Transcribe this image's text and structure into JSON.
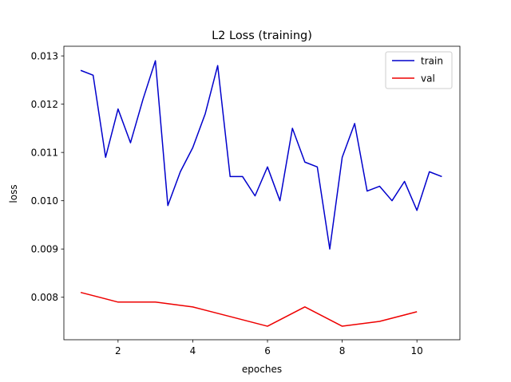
{
  "chart_data": {
    "type": "line",
    "title": "L2 Loss (training)",
    "xlabel": "epoches",
    "ylabel": "loss",
    "xlim": [
      0.55,
      11.15
    ],
    "ylim": [
      0.00712,
      0.0132
    ],
    "xticks": [
      2,
      4,
      6,
      8,
      10
    ],
    "xtick_labels": [
      "2",
      "4",
      "6",
      "8",
      "10"
    ],
    "yticks": [
      0.008,
      0.009,
      0.01,
      0.011,
      0.012,
      0.013
    ],
    "ytick_labels": [
      "0.008",
      "0.009",
      "0.010",
      "0.011",
      "0.012",
      "0.013"
    ],
    "grid": false,
    "legend_position": "top-right",
    "series": [
      {
        "name": "train",
        "color": "#0000cc",
        "x": [
          1.0,
          1.333,
          1.667,
          2.0,
          2.333,
          2.667,
          3.0,
          3.333,
          3.667,
          4.0,
          4.333,
          4.667,
          5.0,
          5.333,
          5.667,
          6.0,
          6.333,
          6.667,
          7.0,
          7.333,
          7.667,
          8.0,
          8.333,
          8.667,
          9.0,
          9.333,
          9.667,
          10.0,
          10.333,
          10.667
        ],
        "y": [
          0.0127,
          0.0126,
          0.0109,
          0.0119,
          0.0112,
          0.0121,
          0.0129,
          0.0099,
          0.0106,
          0.0111,
          0.0118,
          0.0128,
          0.0105,
          0.0105,
          0.0101,
          0.0107,
          0.01,
          0.0115,
          0.0108,
          0.0107,
          0.009,
          0.0109,
          0.0116,
          0.0102,
          0.0103,
          0.01,
          0.0104,
          0.0098,
          0.0106,
          0.0105
        ]
      },
      {
        "name": "val",
        "color": "#ee0000",
        "x": [
          1,
          2,
          3,
          4,
          5,
          6,
          7,
          8,
          9,
          10
        ],
        "y": [
          0.0081,
          0.0079,
          0.0079,
          0.0078,
          0.0076,
          0.0074,
          0.0078,
          0.0074,
          0.0075,
          0.0077
        ]
      }
    ]
  }
}
